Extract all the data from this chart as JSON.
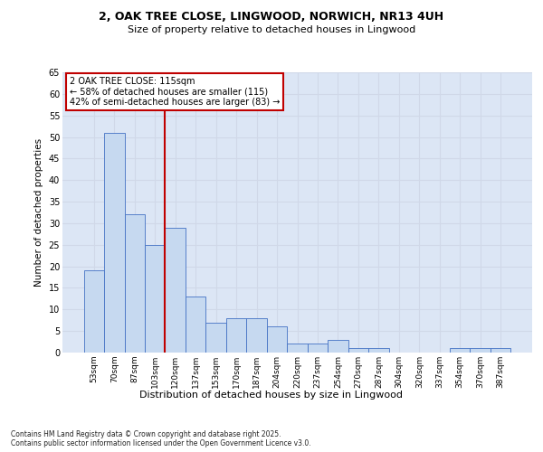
{
  "title1": "2, OAK TREE CLOSE, LINGWOOD, NORWICH, NR13 4UH",
  "title2": "Size of property relative to detached houses in Lingwood",
  "xlabel": "Distribution of detached houses by size in Lingwood",
  "ylabel": "Number of detached properties",
  "categories": [
    "53sqm",
    "70sqm",
    "87sqm",
    "103sqm",
    "120sqm",
    "137sqm",
    "153sqm",
    "170sqm",
    "187sqm",
    "204sqm",
    "220sqm",
    "237sqm",
    "254sqm",
    "270sqm",
    "287sqm",
    "304sqm",
    "320sqm",
    "337sqm",
    "354sqm",
    "370sqm",
    "387sqm"
  ],
  "values": [
    19,
    51,
    32,
    25,
    29,
    13,
    7,
    8,
    8,
    6,
    2,
    2,
    3,
    1,
    1,
    0,
    0,
    0,
    1,
    1,
    1
  ],
  "bar_color": "#c6d9f0",
  "bar_edge_color": "#4472c4",
  "grid_color": "#d0d8e8",
  "vline_x": 3.5,
  "vline_color": "#c00000",
  "annotation_text": "2 OAK TREE CLOSE: 115sqm\n← 58% of detached houses are smaller (115)\n42% of semi-detached houses are larger (83) →",
  "annotation_box_color": "#c00000",
  "ylim": [
    0,
    65
  ],
  "yticks": [
    0,
    5,
    10,
    15,
    20,
    25,
    30,
    35,
    40,
    45,
    50,
    55,
    60,
    65
  ],
  "footer": "Contains HM Land Registry data © Crown copyright and database right 2025.\nContains public sector information licensed under the Open Government Licence v3.0.",
  "bg_color": "#dce6f5",
  "fig_bg_color": "#ffffff"
}
